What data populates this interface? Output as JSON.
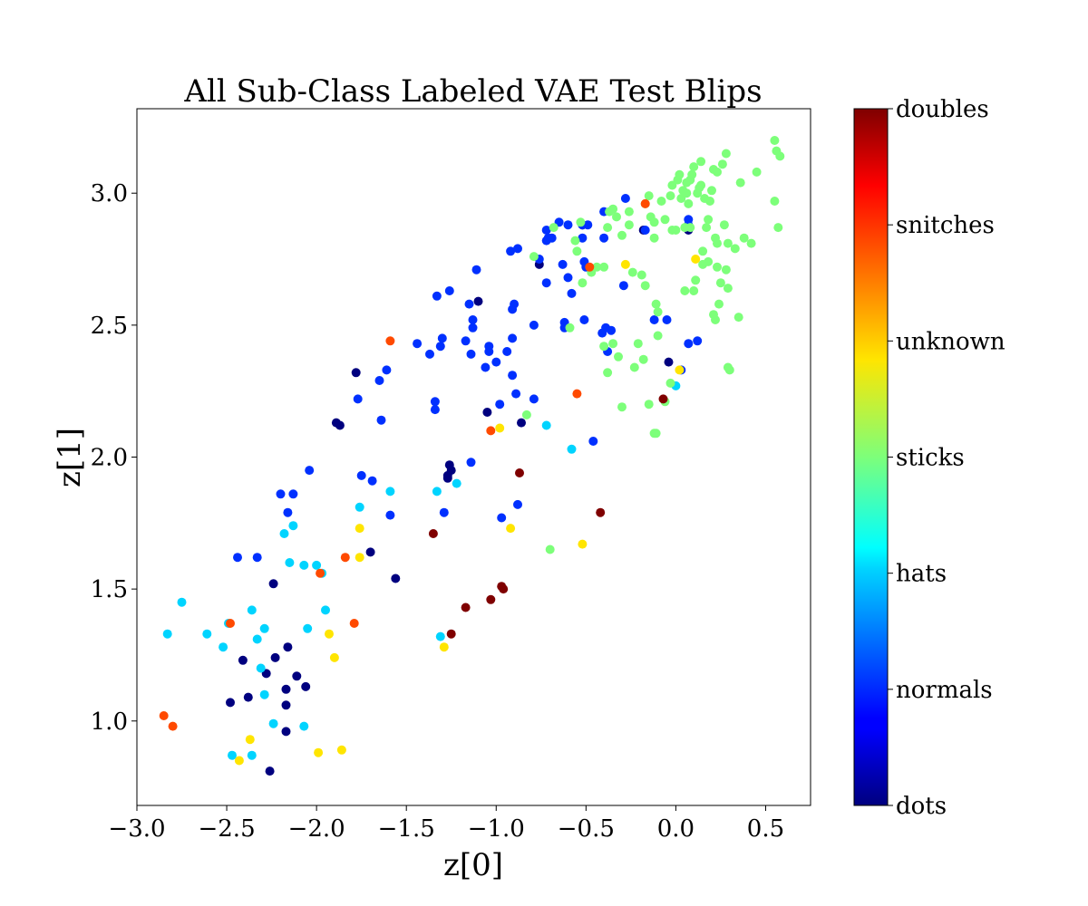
{
  "chart_data": {
    "type": "scatter",
    "title": "All Sub-Class Labeled VAE Test Blips",
    "xlabel": "z[0]",
    "ylabel": "z[1]",
    "xlim": [
      -3.0,
      0.75
    ],
    "ylim": [
      0.68,
      3.32
    ],
    "x_ticks": [
      -3.0,
      -2.5,
      -2.0,
      -1.5,
      -1.0,
      -0.5,
      0.0,
      0.5
    ],
    "x_tick_labels": [
      "−3.0",
      "−2.5",
      "−2.0",
      "−1.5",
      "−1.0",
      "−0.5",
      "0.0",
      "0.5"
    ],
    "y_ticks": [
      1.0,
      1.5,
      2.0,
      2.5,
      3.0
    ],
    "y_tick_labels": [
      "1.0",
      "1.5",
      "2.0",
      "2.5",
      "3.0"
    ],
    "grid": false,
    "colorbar": {
      "colormap": "jet",
      "position": "right",
      "labels": [
        "doubles",
        "snitches",
        "unknown",
        "sticks",
        "hats",
        "normals",
        "dots"
      ]
    },
    "class_colors": {
      "dots": "#00007f",
      "normals": "#0030ff",
      "hats": "#00d4ff",
      "sticks": "#7dff7a",
      "unknown": "#ffe500",
      "snitches": "#ff4a00",
      "doubles": "#7f0000"
    },
    "series": [
      {
        "name": "dots",
        "points": [
          [
            -2.26,
            0.81
          ],
          [
            -2.17,
            0.96
          ],
          [
            -2.48,
            1.07
          ],
          [
            -2.38,
            1.09
          ],
          [
            -2.17,
            1.06
          ],
          [
            -2.17,
            1.12
          ],
          [
            -2.06,
            1.13
          ],
          [
            -2.11,
            1.17
          ],
          [
            -2.28,
            1.18
          ],
          [
            -2.41,
            1.23
          ],
          [
            -2.23,
            1.24
          ],
          [
            -2.16,
            1.28
          ],
          [
            -2.24,
            1.52
          ],
          [
            -1.56,
            1.54
          ],
          [
            -1.7,
            1.64
          ],
          [
            -1.27,
            1.92
          ],
          [
            -1.26,
            1.97
          ],
          [
            -1.25,
            1.95
          ],
          [
            -1.27,
            1.93
          ],
          [
            -1.87,
            2.12
          ],
          [
            -1.89,
            2.13
          ],
          [
            -1.05,
            2.17
          ],
          [
            -0.86,
            2.13
          ],
          [
            -1.78,
            2.32
          ],
          [
            -1.1,
            2.59
          ],
          [
            -0.76,
            2.73
          ],
          [
            -0.52,
            2.88
          ],
          [
            -0.04,
            2.36
          ],
          [
            -0.18,
            2.86
          ],
          [
            0.07,
            2.86
          ]
        ]
      },
      {
        "name": "normals",
        "points": [
          [
            -2.44,
            1.62
          ],
          [
            -2.33,
            1.62
          ],
          [
            -2.2,
            1.86
          ],
          [
            -2.13,
            1.86
          ],
          [
            -2.16,
            1.79
          ],
          [
            -2.04,
            1.95
          ],
          [
            -1.75,
            1.93
          ],
          [
            -1.69,
            1.91
          ],
          [
            -1.59,
            1.78
          ],
          [
            -1.29,
            1.79
          ],
          [
            -1.14,
            1.98
          ],
          [
            -0.97,
            1.77
          ],
          [
            -0.88,
            1.82
          ],
          [
            -1.77,
            2.22
          ],
          [
            -1.64,
            2.14
          ],
          [
            -1.65,
            2.29
          ],
          [
            -1.61,
            2.33
          ],
          [
            -1.44,
            2.43
          ],
          [
            -1.37,
            2.39
          ],
          [
            -1.31,
            2.42
          ],
          [
            -1.3,
            2.45
          ],
          [
            -1.34,
            2.21
          ],
          [
            -1.34,
            2.18
          ],
          [
            -1.33,
            2.61
          ],
          [
            -1.26,
            2.63
          ],
          [
            -1.17,
            2.44
          ],
          [
            -1.14,
            2.39
          ],
          [
            -1.13,
            2.52
          ],
          [
            -1.13,
            2.49
          ],
          [
            -1.15,
            2.58
          ],
          [
            -1.11,
            2.71
          ],
          [
            -1.06,
            2.34
          ],
          [
            -1.04,
            2.4
          ],
          [
            -1.04,
            2.42
          ],
          [
            -1.0,
            2.36
          ],
          [
            -0.98,
            2.2
          ],
          [
            -0.94,
            2.4
          ],
          [
            -0.91,
            2.45
          ],
          [
            -0.91,
            2.31
          ],
          [
            -0.89,
            2.24
          ],
          [
            -0.91,
            2.56
          ],
          [
            -0.9,
            2.58
          ],
          [
            -0.79,
            2.22
          ],
          [
            -0.79,
            2.5
          ],
          [
            -0.92,
            2.78
          ],
          [
            -0.88,
            2.79
          ],
          [
            -0.76,
            2.75
          ],
          [
            -0.72,
            2.66
          ],
          [
            -0.72,
            2.82
          ],
          [
            -0.72,
            2.86
          ],
          [
            -0.71,
            2.83
          ],
          [
            -0.69,
            2.83
          ],
          [
            -0.65,
            2.89
          ],
          [
            -0.62,
            2.51
          ],
          [
            -0.62,
            2.49
          ],
          [
            -0.63,
            2.73
          ],
          [
            -0.6,
            2.68
          ],
          [
            -0.58,
            2.62
          ],
          [
            -0.6,
            2.88
          ],
          [
            -0.52,
            2.88
          ],
          [
            -0.51,
            2.52
          ],
          [
            -0.52,
            2.83
          ],
          [
            -0.51,
            2.74
          ],
          [
            -0.49,
            2.88
          ],
          [
            -0.46,
            2.06
          ],
          [
            -0.5,
            2.72
          ],
          [
            -0.41,
            2.47
          ],
          [
            -0.39,
            2.49
          ],
          [
            -0.38,
            2.4
          ],
          [
            -0.36,
            2.48
          ],
          [
            -0.4,
            2.93
          ],
          [
            -0.4,
            2.83
          ],
          [
            -0.28,
            2.98
          ],
          [
            -0.29,
            2.65
          ],
          [
            -0.17,
            2.86
          ],
          [
            -0.12,
            2.52
          ],
          [
            -0.05,
            2.52
          ],
          [
            0.07,
            2.43
          ],
          [
            0.07,
            2.88
          ],
          [
            0.07,
            2.9
          ],
          [
            0.12,
            2.44
          ],
          [
            0.03,
            2.33
          ]
        ]
      },
      {
        "name": "hats",
        "points": [
          [
            -2.83,
            1.33
          ],
          [
            -2.75,
            1.45
          ],
          [
            -2.61,
            1.33
          ],
          [
            -2.49,
            1.37
          ],
          [
            -2.47,
            0.87
          ],
          [
            -2.52,
            1.28
          ],
          [
            -2.36,
            1.42
          ],
          [
            -2.33,
            1.31
          ],
          [
            -2.29,
            1.35
          ],
          [
            -2.31,
            1.2
          ],
          [
            -2.29,
            1.1
          ],
          [
            -2.24,
            0.99
          ],
          [
            -2.36,
            0.87
          ],
          [
            -2.18,
            1.71
          ],
          [
            -2.15,
            1.6
          ],
          [
            -2.13,
            1.74
          ],
          [
            -2.05,
            1.35
          ],
          [
            -2.07,
            0.98
          ],
          [
            -2.07,
            1.59
          ],
          [
            -2.0,
            1.59
          ],
          [
            -1.97,
            1.56
          ],
          [
            -1.95,
            1.42
          ],
          [
            -1.76,
            1.81
          ],
          [
            -1.59,
            1.87
          ],
          [
            -1.33,
            1.87
          ],
          [
            -1.31,
            1.32
          ],
          [
            -1.22,
            1.9
          ],
          [
            -0.72,
            2.12
          ],
          [
            -0.58,
            2.03
          ],
          [
            0.0,
            2.27
          ]
        ]
      },
      {
        "name": "sticks",
        "points": [
          [
            -0.7,
            1.65
          ],
          [
            -0.83,
            2.16
          ],
          [
            -0.79,
            2.76
          ],
          [
            -0.68,
            2.87
          ],
          [
            -0.59,
            2.49
          ],
          [
            -0.55,
            2.78
          ],
          [
            -0.56,
            2.82
          ],
          [
            -0.53,
            2.89
          ],
          [
            -0.52,
            2.66
          ],
          [
            -0.47,
            2.7
          ],
          [
            -0.44,
            2.72
          ],
          [
            -0.4,
            2.72
          ],
          [
            -0.4,
            2.42
          ],
          [
            -0.38,
            2.32
          ],
          [
            -0.35,
            2.43
          ],
          [
            -0.38,
            2.87
          ],
          [
            -0.37,
            2.93
          ],
          [
            -0.35,
            2.94
          ],
          [
            -0.33,
            2.91
          ],
          [
            -0.32,
            2.38
          ],
          [
            -0.3,
            2.19
          ],
          [
            -0.3,
            2.84
          ],
          [
            -0.26,
            2.88
          ],
          [
            -0.26,
            2.93
          ],
          [
            -0.24,
            2.7
          ],
          [
            -0.23,
            2.34
          ],
          [
            -0.21,
            2.43
          ],
          [
            -0.19,
            2.69
          ],
          [
            -0.18,
            2.37
          ],
          [
            -0.17,
            2.65
          ],
          [
            -0.17,
            2.96
          ],
          [
            -0.15,
            2.99
          ],
          [
            -0.14,
            2.91
          ],
          [
            -0.12,
            2.83
          ],
          [
            -0.12,
            2.89
          ],
          [
            -0.11,
            2.58
          ],
          [
            -0.1,
            2.55
          ],
          [
            -0.1,
            2.46
          ],
          [
            -0.08,
            2.97
          ],
          [
            -0.06,
            2.9
          ],
          [
            -0.03,
            2.99
          ],
          [
            -0.02,
            2.86
          ],
          [
            -0.02,
            3.03
          ],
          [
            0.0,
            2.86
          ],
          [
            0.01,
            3.05
          ],
          [
            0.02,
            3.07
          ],
          [
            0.03,
            2.98
          ],
          [
            0.04,
            3.01
          ],
          [
            0.05,
            2.87
          ],
          [
            0.05,
            2.63
          ],
          [
            0.06,
            3.04
          ],
          [
            0.06,
            3.0
          ],
          [
            0.07,
            2.96
          ],
          [
            0.08,
            3.05
          ],
          [
            0.08,
            2.87
          ],
          [
            0.09,
            3.07
          ],
          [
            0.1,
            3.1
          ],
          [
            0.1,
            2.63
          ],
          [
            0.11,
            2.67
          ],
          [
            0.12,
            3.0
          ],
          [
            0.13,
            3.02
          ],
          [
            0.14,
            3.03
          ],
          [
            0.14,
            3.12
          ],
          [
            0.15,
            2.78
          ],
          [
            0.15,
            2.73
          ],
          [
            0.16,
            2.98
          ],
          [
            0.17,
            2.87
          ],
          [
            0.18,
            2.9
          ],
          [
            0.18,
            2.74
          ],
          [
            0.19,
            2.97
          ],
          [
            0.2,
            3.01
          ],
          [
            0.21,
            3.09
          ],
          [
            0.21,
            2.54
          ],
          [
            0.22,
            2.52
          ],
          [
            0.22,
            2.83
          ],
          [
            0.23,
            2.81
          ],
          [
            0.23,
            2.72
          ],
          [
            0.23,
            3.08
          ],
          [
            0.24,
            2.58
          ],
          [
            0.25,
            2.66
          ],
          [
            0.26,
            3.11
          ],
          [
            0.27,
            2.88
          ],
          [
            0.28,
            3.15
          ],
          [
            0.28,
            2.71
          ],
          [
            0.29,
            2.64
          ],
          [
            0.29,
            2.81
          ],
          [
            0.29,
            2.34
          ],
          [
            0.3,
            2.33
          ],
          [
            0.33,
            2.79
          ],
          [
            0.35,
            2.53
          ],
          [
            0.36,
            3.04
          ],
          [
            0.38,
            2.83
          ],
          [
            0.42,
            2.81
          ],
          [
            0.45,
            3.08
          ],
          [
            0.55,
            2.97
          ],
          [
            0.55,
            3.2
          ],
          [
            0.56,
            3.16
          ],
          [
            0.57,
            2.87
          ],
          [
            0.58,
            3.14
          ],
          [
            -0.06,
            2.21
          ],
          [
            -0.03,
            2.28
          ],
          [
            -0.11,
            2.09
          ],
          [
            -0.12,
            2.09
          ],
          [
            -0.15,
            2.2
          ]
        ]
      },
      {
        "name": "unknown",
        "points": [
          [
            -2.43,
            0.85
          ],
          [
            -2.37,
            0.93
          ],
          [
            -1.99,
            0.88
          ],
          [
            -1.93,
            1.33
          ],
          [
            -1.9,
            1.24
          ],
          [
            -1.86,
            0.89
          ],
          [
            -1.76,
            1.73
          ],
          [
            -1.76,
            1.62
          ],
          [
            -1.29,
            1.28
          ],
          [
            -0.98,
            2.11
          ],
          [
            -0.92,
            1.73
          ],
          [
            -0.52,
            1.67
          ],
          [
            -0.28,
            2.73
          ],
          [
            0.11,
            2.75
          ],
          [
            0.02,
            2.33
          ]
        ]
      },
      {
        "name": "snitches",
        "points": [
          [
            -2.85,
            1.02
          ],
          [
            -2.8,
            0.98
          ],
          [
            -2.48,
            1.37
          ],
          [
            -1.98,
            1.56
          ],
          [
            -1.84,
            1.62
          ],
          [
            -1.79,
            1.37
          ],
          [
            -1.59,
            2.44
          ],
          [
            -1.03,
            2.1
          ],
          [
            -0.55,
            2.24
          ],
          [
            -0.48,
            2.72
          ],
          [
            -0.17,
            2.96
          ]
        ]
      },
      {
        "name": "doubles",
        "points": [
          [
            -1.35,
            1.71
          ],
          [
            -1.25,
            1.33
          ],
          [
            -1.17,
            1.43
          ],
          [
            -1.03,
            1.46
          ],
          [
            -0.97,
            1.51
          ],
          [
            -0.96,
            1.5
          ],
          [
            -0.87,
            1.94
          ],
          [
            -0.42,
            1.79
          ],
          [
            -0.07,
            2.22
          ]
        ]
      }
    ]
  }
}
